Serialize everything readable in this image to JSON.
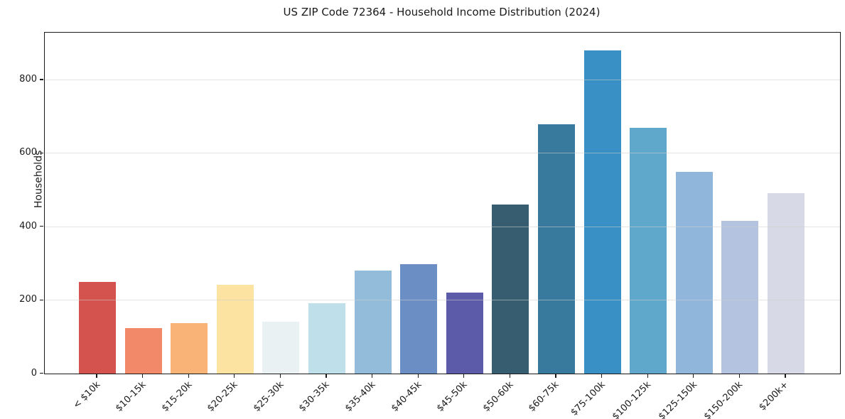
{
  "chart_data": {
    "type": "bar",
    "title": "US ZIP Code 72364 - Household Income Distribution (2024)",
    "xlabel": "",
    "ylabel": "Households",
    "categories": [
      "< $10k",
      "$10-15k",
      "$15-20k",
      "$20-25k",
      "$25-30k",
      "$30-35k",
      "$35-40k",
      "$40-45k",
      "$45-50k",
      "$50-60k",
      "$60-75k",
      "$75-100k",
      "$100-125k",
      "$125-150k",
      "$150-200k",
      "$200k+"
    ],
    "values": [
      250,
      124,
      137,
      242,
      142,
      192,
      280,
      298,
      220,
      460,
      678,
      880,
      668,
      550,
      415,
      492
    ],
    "bar_colors": [
      "#D4534E",
      "#F28A6A",
      "#F9B376",
      "#FCE3A2",
      "#E9F1F3",
      "#BFE0EA",
      "#93BCDA",
      "#6B8FC5",
      "#5B5BA9",
      "#365D70",
      "#377A9E",
      "#3990C4",
      "#5FA8CC",
      "#90B7DB",
      "#B3C3E0",
      "#D7D9E7"
    ],
    "yticks": [
      0,
      200,
      400,
      600,
      800
    ],
    "ylim": [
      0,
      928
    ],
    "grid": "horizontal",
    "legend_position": "none",
    "axis_color": "#1a1a1a",
    "grid_color": "#dcdcdc"
  }
}
